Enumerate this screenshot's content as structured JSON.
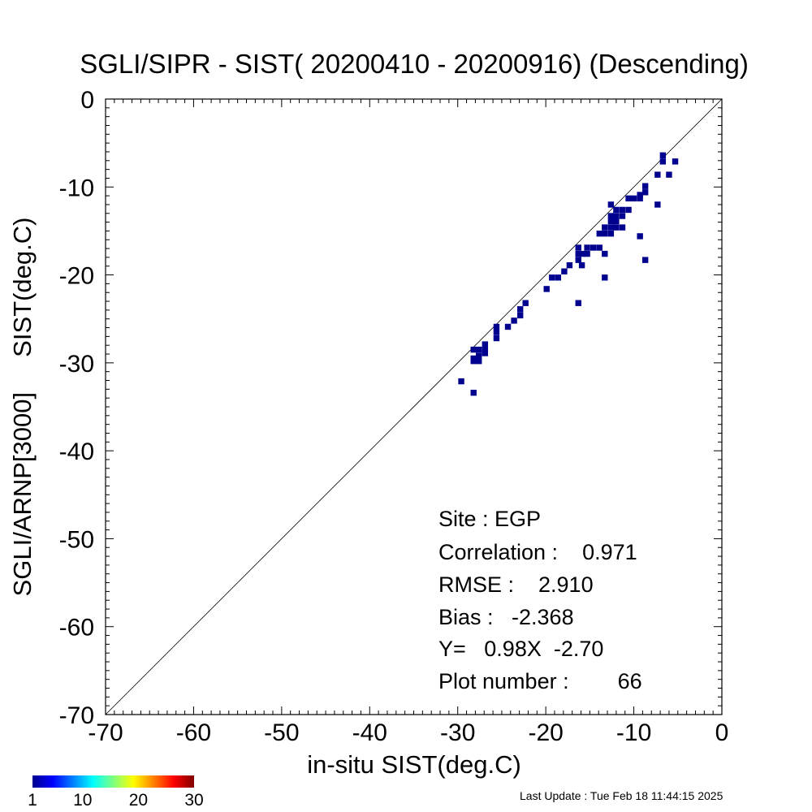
{
  "chart_data": {
    "type": "scatter",
    "title": "SGLI/SIPR - SIST( 20200410 - 20200916) (Descending)",
    "xlabel": "in-situ SIST(deg.C)",
    "ylabel": "SGLI/ARNP[3000]     SIST(deg.C)",
    "xlim": [
      -70,
      0
    ],
    "ylim": [
      -70,
      0
    ],
    "xticks": [
      "-70",
      "-60",
      "-50",
      "-40",
      "-30",
      "-20",
      "-10",
      "0"
    ],
    "yticks": [
      "-70",
      "-60",
      "-50",
      "-40",
      "-30",
      "-20",
      "-10",
      "0"
    ],
    "reference_line": "1:1",
    "point_color": "#00008F",
    "points": [
      [
        -6.7,
        -6.4
      ],
      [
        -6.7,
        -7.1
      ],
      [
        -5.3,
        -7.1
      ],
      [
        -6.0,
        -8.6
      ],
      [
        -7.3,
        -8.6
      ],
      [
        -8.7,
        -9.9
      ],
      [
        -8.7,
        -10.6
      ],
      [
        -9.3,
        -10.9
      ],
      [
        -9.3,
        -11.3
      ],
      [
        -10.0,
        -11.3
      ],
      [
        -10.6,
        -11.3
      ],
      [
        -10.6,
        -12.6
      ],
      [
        -11.3,
        -12.6
      ],
      [
        -7.3,
        -12.0
      ],
      [
        -12.6,
        -12.0
      ],
      [
        -12.0,
        -12.6
      ],
      [
        -12.0,
        -13.3
      ],
      [
        -11.3,
        -13.3
      ],
      [
        -12.6,
        -13.3
      ],
      [
        -12.0,
        -13.9
      ],
      [
        -11.3,
        -14.6
      ],
      [
        -12.0,
        -14.6
      ],
      [
        -12.6,
        -14.6
      ],
      [
        -13.3,
        -14.6
      ],
      [
        -12.6,
        -13.9
      ],
      [
        -13.3,
        -15.3
      ],
      [
        -13.9,
        -15.3
      ],
      [
        -12.6,
        -15.3
      ],
      [
        -9.3,
        -15.6
      ],
      [
        -14.6,
        -16.9
      ],
      [
        -15.3,
        -16.9
      ],
      [
        -13.9,
        -16.9
      ],
      [
        -16.3,
        -16.9
      ],
      [
        -15.3,
        -17.6
      ],
      [
        -15.9,
        -17.6
      ],
      [
        -16.3,
        -17.6
      ],
      [
        -13.3,
        -17.6
      ],
      [
        -16.3,
        -18.3
      ],
      [
        -15.9,
        -18.9
      ],
      [
        -17.3,
        -18.9
      ],
      [
        -8.7,
        -18.3
      ],
      [
        -17.9,
        -19.6
      ],
      [
        -18.6,
        -20.3
      ],
      [
        -19.3,
        -20.3
      ],
      [
        -13.3,
        -20.3
      ],
      [
        -19.9,
        -21.6
      ],
      [
        -16.3,
        -23.2
      ],
      [
        -22.3,
        -23.2
      ],
      [
        -22.9,
        -23.9
      ],
      [
        -22.9,
        -24.6
      ],
      [
        -23.6,
        -25.2
      ],
      [
        -24.3,
        -25.9
      ],
      [
        -25.6,
        -25.9
      ],
      [
        -25.6,
        -26.5
      ],
      [
        -25.6,
        -27.2
      ],
      [
        -26.9,
        -27.9
      ],
      [
        -26.9,
        -28.5
      ],
      [
        -27.6,
        -28.5
      ],
      [
        -28.2,
        -28.5
      ],
      [
        -27.6,
        -29.2
      ],
      [
        -26.9,
        -28.9
      ],
      [
        -28.2,
        -29.5
      ],
      [
        -27.6,
        -29.8
      ],
      [
        -28.2,
        -29.8
      ],
      [
        -29.6,
        -32.1
      ],
      [
        -28.2,
        -33.4
      ]
    ],
    "stats": {
      "site": "Site : EGP",
      "correlation": "Correlation :    0.971",
      "rmse": "RMSE :    2.910",
      "bias": "Bias :   -2.368",
      "fit": "Y=   0.98X  -2.70",
      "plot_number": "Plot number :        66"
    },
    "colorbar": {
      "colors": [
        "#00008F",
        "#0000FF",
        "#007FFF",
        "#00FFFF",
        "#7FFF7F",
        "#FFFF00",
        "#FF7F00",
        "#FF0000",
        "#7F0000"
      ],
      "tick_labels": [
        "1",
        "10",
        "20",
        "30"
      ],
      "range": [
        1,
        30
      ]
    }
  },
  "footer": {
    "last_update": "Last Update : Tue Feb 18 11:44:15 2025"
  }
}
